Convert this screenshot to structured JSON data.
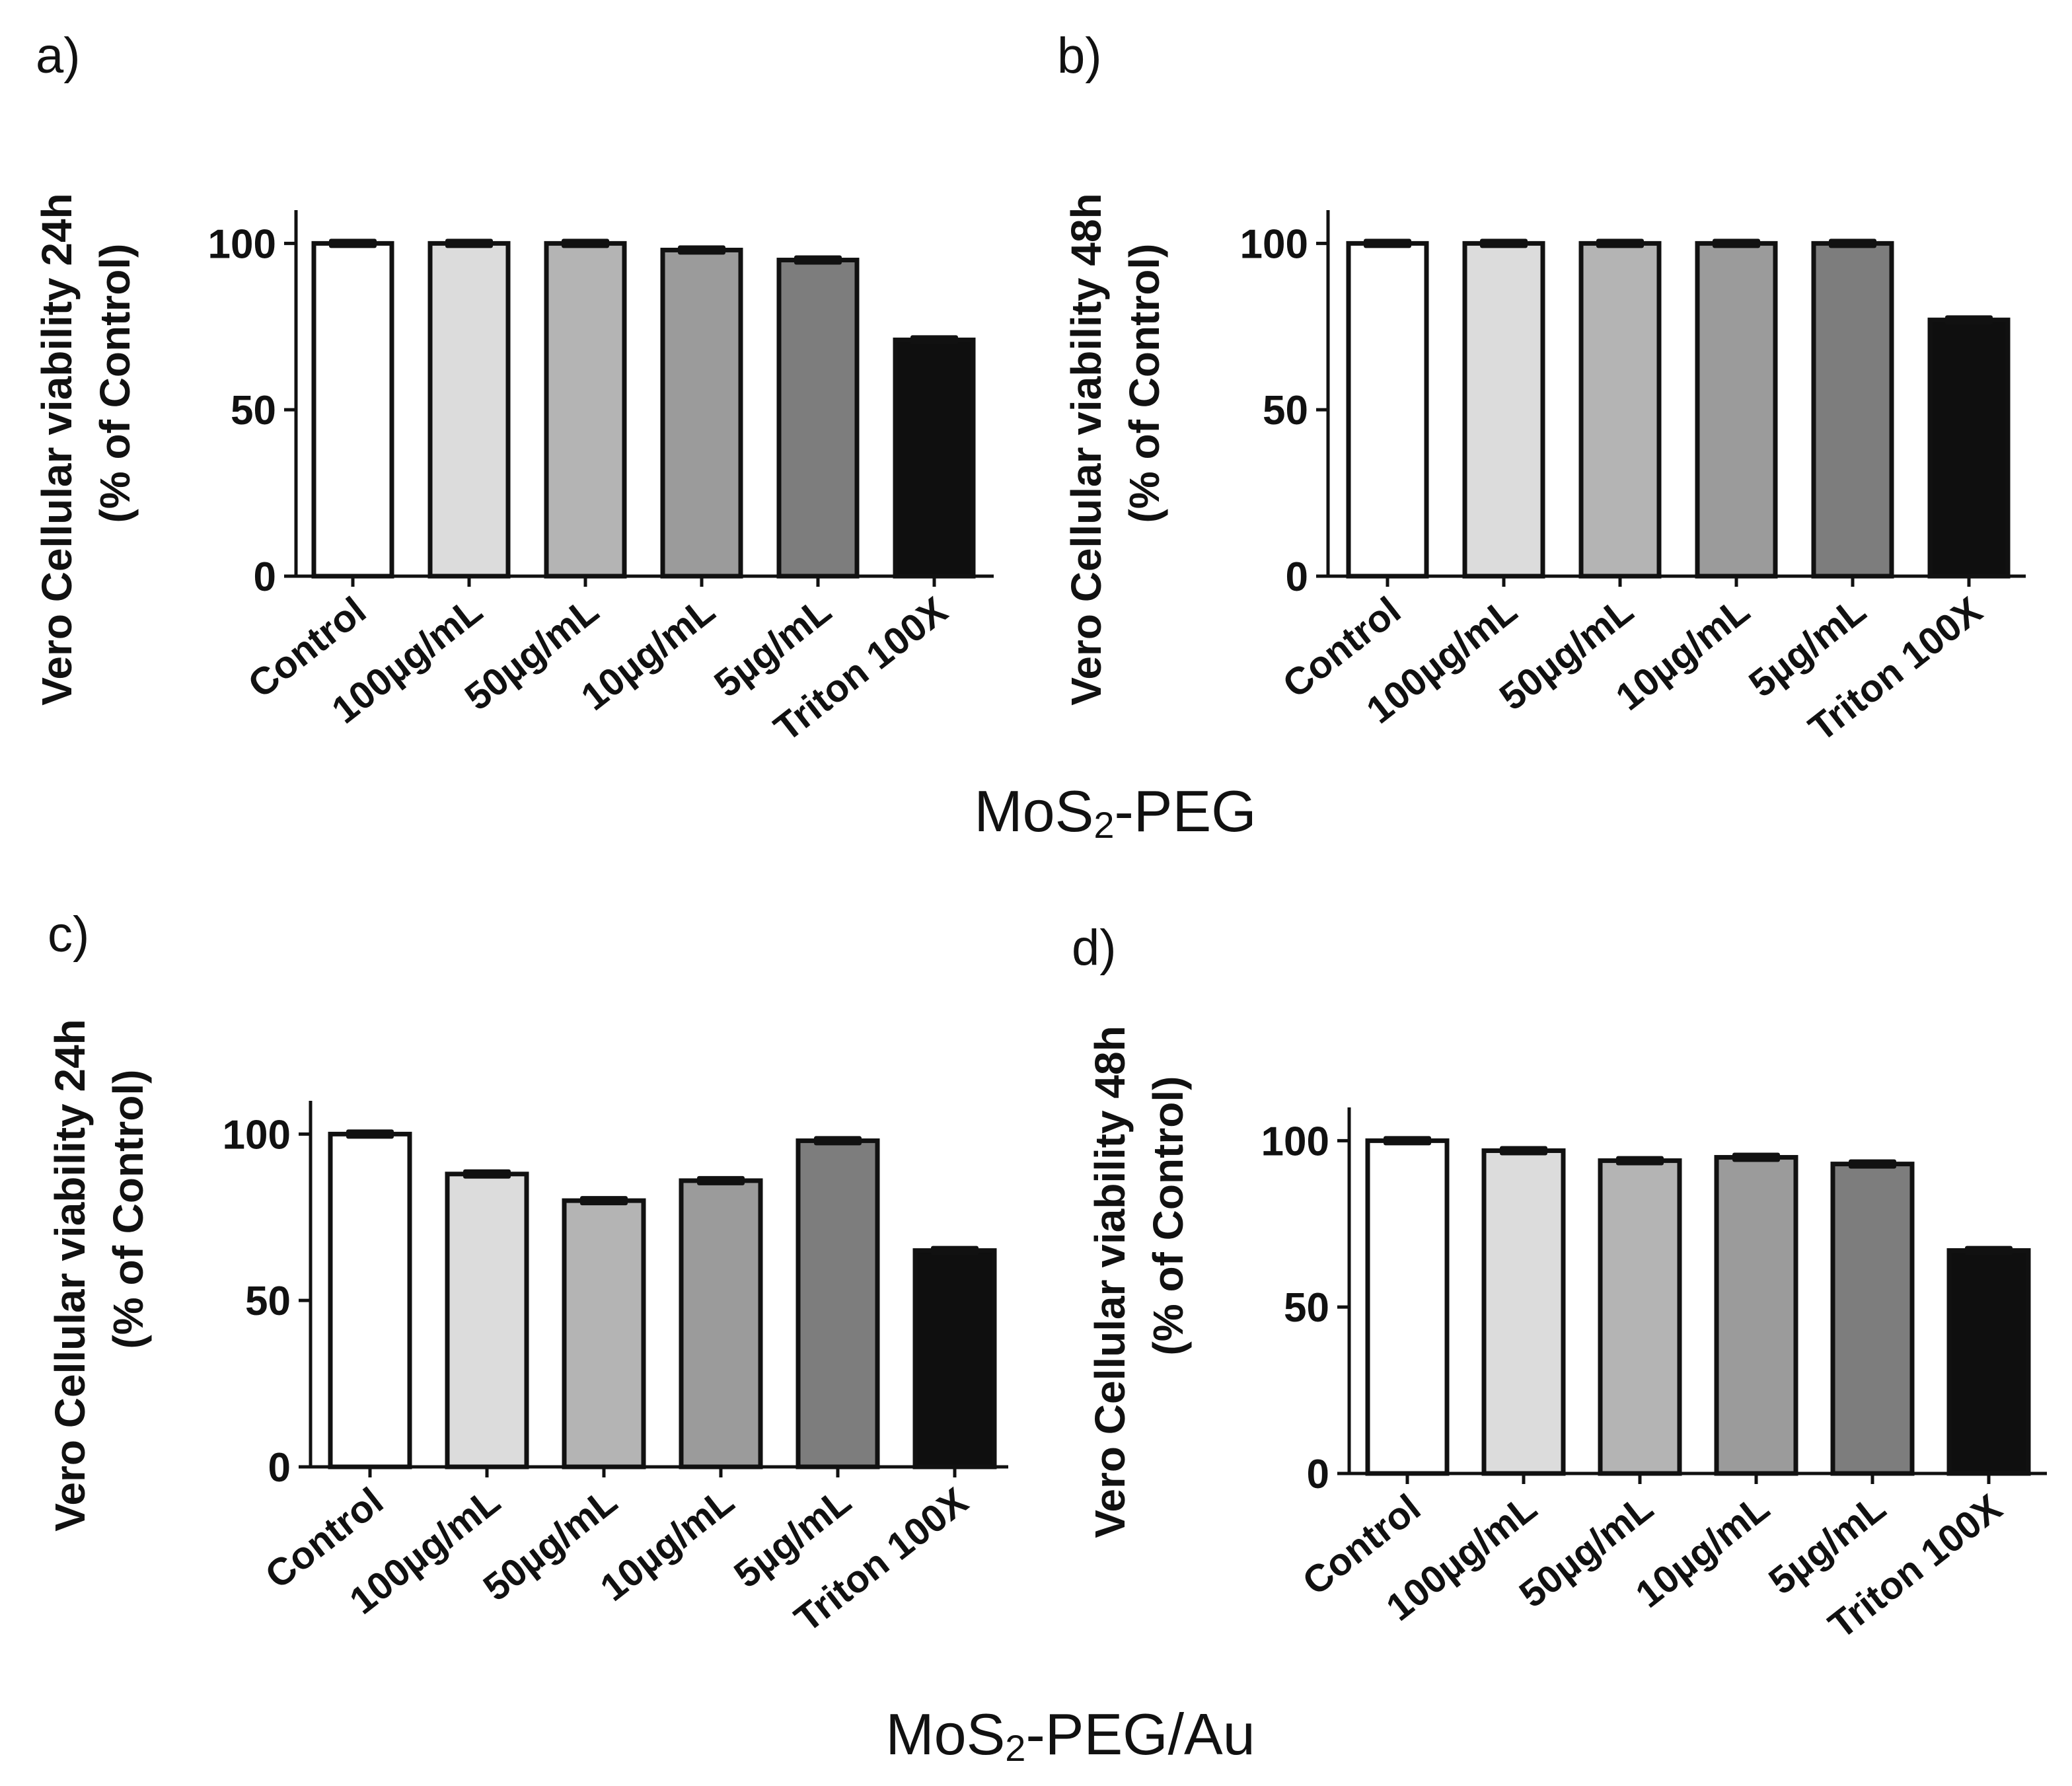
{
  "figure": {
    "group_titles": [
      {
        "prefix": "MoS",
        "sub": "2",
        "suffix": "-PEG"
      },
      {
        "prefix": "MoS",
        "sub": "2",
        "suffix": "-PEG/Au"
      }
    ]
  },
  "colors": {
    "bars": [
      "#ffffff",
      "#dcdcdc",
      "#b4b4b4",
      "#9b9b9b",
      "#7d7d7d",
      "#0f0f0f"
    ],
    "axis": "#111111",
    "outline": "#111111"
  },
  "chart_data": [
    {
      "panel": "a)",
      "type": "bar",
      "ylabel_line1": "Vero Cellular viability 24h",
      "ylabel_line2": "(% of Control)",
      "categories": [
        "Control",
        "100µg/mL",
        "50µg/mL",
        "10µg/mL",
        "5µg/mL",
        "Triton 100X"
      ],
      "values": [
        100,
        100,
        100,
        98,
        95,
        71
      ],
      "ylim": [
        0,
        110
      ],
      "yticks": [
        0,
        50,
        100
      ]
    },
    {
      "panel": "b)",
      "type": "bar",
      "ylabel_line1": "Vero Cellular viability 48h",
      "ylabel_line2": "(% of Control)",
      "categories": [
        "Control",
        "100µg/mL",
        "50µg/mL",
        "10µg/mL",
        "5µg/mL",
        "Triton 100X"
      ],
      "values": [
        100,
        100,
        100,
        100,
        100,
        77
      ],
      "ylim": [
        0,
        110
      ],
      "yticks": [
        0,
        50,
        100
      ]
    },
    {
      "panel": "c)",
      "type": "bar",
      "ylabel_line1": "Vero Cellular viability 24h",
      "ylabel_line2": "(% of Control)",
      "categories": [
        "Control",
        "100µg/mL",
        "50µg/mL",
        "10µg/mL",
        "5µg/mL",
        "Triton 100X"
      ],
      "values": [
        100,
        88,
        80,
        86,
        98,
        65
      ],
      "ylim": [
        0,
        110
      ],
      "yticks": [
        0,
        50,
        100
      ]
    },
    {
      "panel": "d)",
      "type": "bar",
      "ylabel_line1": "Vero Cellular viability 48h",
      "ylabel_line2": "(% of Control)",
      "categories": [
        "Control",
        "100µg/mL",
        "50µg/mL",
        "10µg/mL",
        "5µg/mL",
        "Triton 100X"
      ],
      "values": [
        100,
        97,
        94,
        95,
        93,
        67
      ],
      "ylim": [
        0,
        110
      ],
      "yticks": [
        0,
        50,
        100
      ]
    }
  ]
}
